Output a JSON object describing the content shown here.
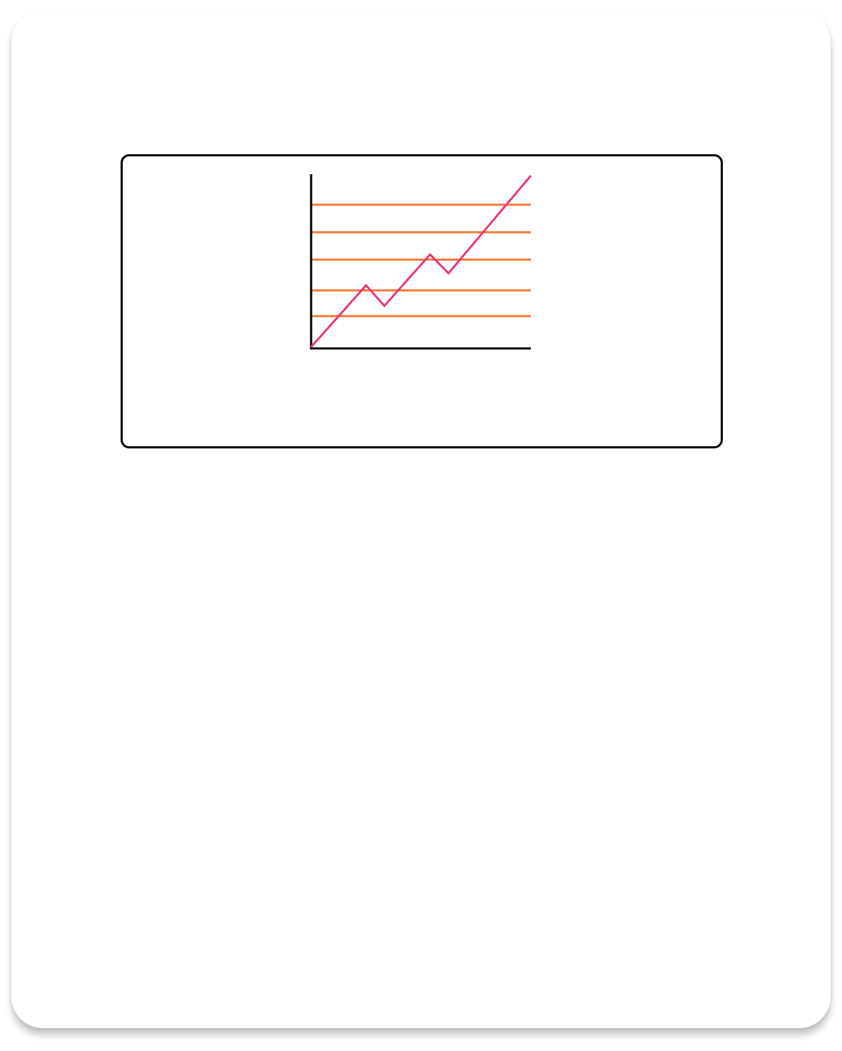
{
  "chart_data": {
    "type": "line",
    "title": "",
    "xlabel": "",
    "ylabel": "",
    "xlim": [
      0,
      12
    ],
    "ylim": [
      0,
      10
    ],
    "grid": false,
    "reference_lines": [
      1.8,
      3.3,
      5.1,
      6.7,
      8.3
    ],
    "series": [
      {
        "x": [
          0,
          3,
          4,
          6.5,
          7.5,
          12
        ],
        "y": [
          0,
          3.6,
          2.4,
          5.4,
          4.3,
          10
        ],
        "color": "#e6397a"
      }
    ],
    "colors": {
      "axis": "#000000",
      "reference_lines": "#f47a3c",
      "series": "#e6397a"
    }
  }
}
